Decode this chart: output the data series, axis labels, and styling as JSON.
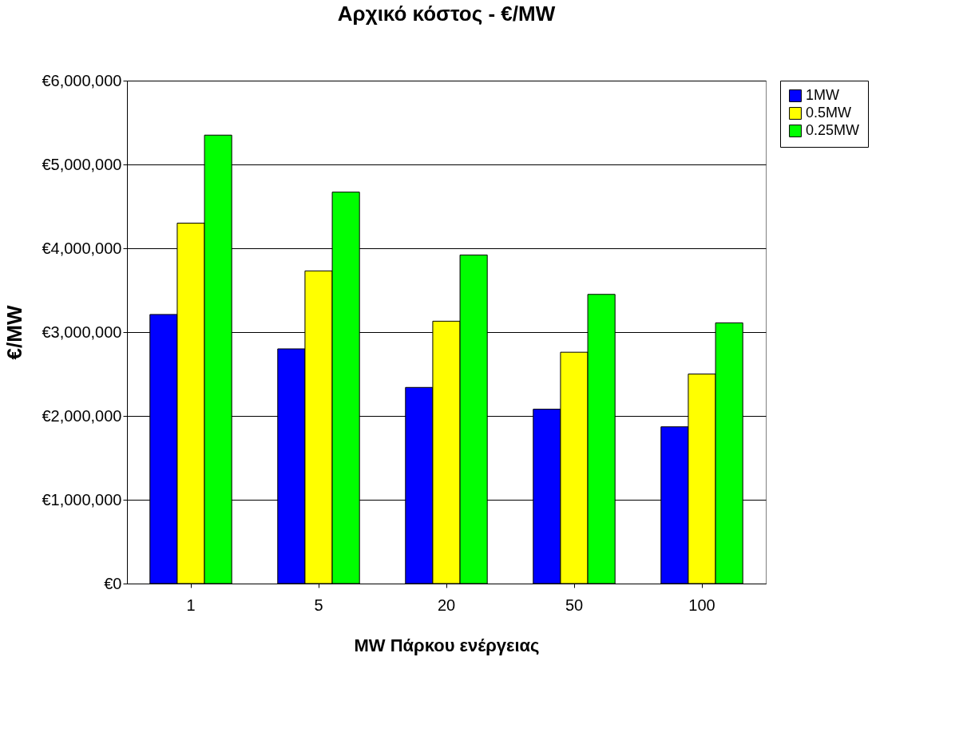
{
  "chart_data": {
    "type": "bar",
    "title": "Αρχικό κόστος - €/MW",
    "xlabel": "MW Πάρκου ενέργειας",
    "ylabel": "€/MW",
    "categories": [
      "1",
      "5",
      "20",
      "50",
      "100"
    ],
    "series": [
      {
        "name": "1MW",
        "color": "#0000ff",
        "values": [
          3210000,
          2800000,
          2340000,
          2080000,
          1870000
        ]
      },
      {
        "name": "0.5MW",
        "color": "#ffff00",
        "values": [
          4300000,
          3730000,
          3130000,
          2760000,
          2500000
        ]
      },
      {
        "name": "0.25MW",
        "color": "#00ff00",
        "values": [
          5350000,
          4670000,
          3920000,
          3450000,
          3110000
        ]
      }
    ],
    "ylim": [
      0,
      6000000
    ],
    "yticks": [
      {
        "value": 0,
        "label": "€0"
      },
      {
        "value": 1000000,
        "label": "€1,000,000"
      },
      {
        "value": 2000000,
        "label": "€2,000,000"
      },
      {
        "value": 3000000,
        "label": "€3,000,000"
      },
      {
        "value": 4000000,
        "label": "€4,000,000"
      },
      {
        "value": 5000000,
        "label": "€5,000,000"
      },
      {
        "value": 6000000,
        "label": "€6,000,000"
      }
    ],
    "grid": "y",
    "legend": "right"
  }
}
